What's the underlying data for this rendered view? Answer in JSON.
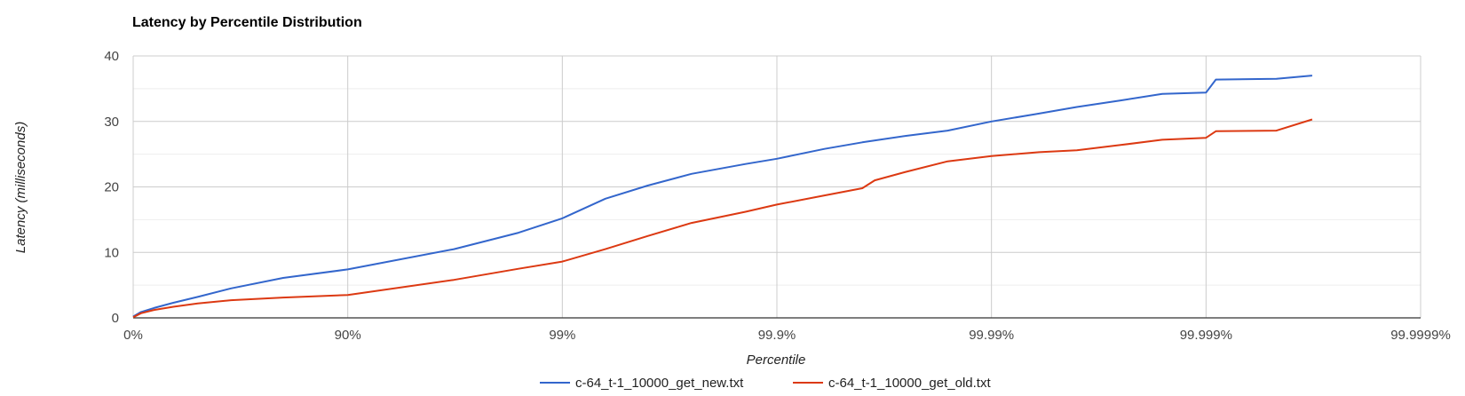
{
  "chart_data": {
    "type": "line",
    "title": "Latency by Percentile Distribution",
    "xlabel": "Percentile",
    "ylabel": "Latency (milliseconds)",
    "x_scale": "log-percentile",
    "x_ticks": [
      "0%",
      "90%",
      "99%",
      "99.9%",
      "99.99%",
      "99.999%",
      "99.9999%"
    ],
    "y_ticks": [
      0,
      10,
      20,
      30,
      40
    ],
    "ylim": [
      0,
      40
    ],
    "grid": true,
    "legend_position": "bottom",
    "series": [
      {
        "name": "c-64_t-1_10000_get_new.txt",
        "color": "#3366cc",
        "points": [
          {
            "percentile": 0,
            "latency": 0.2
          },
          {
            "percentile": 8,
            "latency": 0.9
          },
          {
            "percentile": 20,
            "latency": 1.5
          },
          {
            "percentile": 35,
            "latency": 2.3
          },
          {
            "percentile": 50,
            "latency": 3.2
          },
          {
            "percentile": 65,
            "latency": 4.5
          },
          {
            "percentile": 80,
            "latency": 6.1
          },
          {
            "percentile": 90,
            "latency": 7.4
          },
          {
            "percentile": 96.8,
            "latency": 10.5
          },
          {
            "percentile": 98.4,
            "latency": 13.0
          },
          {
            "percentile": 99.0,
            "latency": 15.2
          },
          {
            "percentile": 99.37,
            "latency": 18.2
          },
          {
            "percentile": 99.6,
            "latency": 20.2
          },
          {
            "percentile": 99.75,
            "latency": 22.0
          },
          {
            "percentile": 99.86,
            "latency": 23.5
          },
          {
            "percentile": 99.9,
            "latency": 24.3
          },
          {
            "percentile": 99.94,
            "latency": 25.8
          },
          {
            "percentile": 99.96,
            "latency": 26.8
          },
          {
            "percentile": 99.975,
            "latency": 27.8
          },
          {
            "percentile": 99.984,
            "latency": 28.6
          },
          {
            "percentile": 99.99,
            "latency": 30.0
          },
          {
            "percentile": 99.994,
            "latency": 31.2
          },
          {
            "percentile": 99.996,
            "latency": 32.2
          },
          {
            "percentile": 99.9975,
            "latency": 33.2
          },
          {
            "percentile": 99.9984,
            "latency": 34.2
          },
          {
            "percentile": 99.999,
            "latency": 34.4
          },
          {
            "percentile": 99.9991,
            "latency": 36.4
          },
          {
            "percentile": 99.99953,
            "latency": 36.5
          },
          {
            "percentile": 99.99968,
            "latency": 37.0
          }
        ]
      },
      {
        "name": "c-64_t-1_10000_get_old.txt",
        "color": "#dc3912",
        "points": [
          {
            "percentile": 0,
            "latency": 0.1
          },
          {
            "percentile": 8,
            "latency": 0.7
          },
          {
            "percentile": 20,
            "latency": 1.2
          },
          {
            "percentile": 35,
            "latency": 1.7
          },
          {
            "percentile": 50,
            "latency": 2.2
          },
          {
            "percentile": 65,
            "latency": 2.7
          },
          {
            "percentile": 80,
            "latency": 3.1
          },
          {
            "percentile": 90,
            "latency": 3.5
          },
          {
            "percentile": 96.8,
            "latency": 5.8
          },
          {
            "percentile": 98.4,
            "latency": 7.5
          },
          {
            "percentile": 99.0,
            "latency": 8.6
          },
          {
            "percentile": 99.37,
            "latency": 10.5
          },
          {
            "percentile": 99.6,
            "latency": 12.5
          },
          {
            "percentile": 99.75,
            "latency": 14.5
          },
          {
            "percentile": 99.86,
            "latency": 16.2
          },
          {
            "percentile": 99.9,
            "latency": 17.3
          },
          {
            "percentile": 99.94,
            "latency": 18.7
          },
          {
            "percentile": 99.96,
            "latency": 19.8
          },
          {
            "percentile": 99.965,
            "latency": 21.0
          },
          {
            "percentile": 99.975,
            "latency": 22.3
          },
          {
            "percentile": 99.984,
            "latency": 23.9
          },
          {
            "percentile": 99.99,
            "latency": 24.7
          },
          {
            "percentile": 99.994,
            "latency": 25.3
          },
          {
            "percentile": 99.996,
            "latency": 25.6
          },
          {
            "percentile": 99.9975,
            "latency": 26.4
          },
          {
            "percentile": 99.9984,
            "latency": 27.2
          },
          {
            "percentile": 99.999,
            "latency": 27.5
          },
          {
            "percentile": 99.9991,
            "latency": 28.5
          },
          {
            "percentile": 99.99953,
            "latency": 28.6
          },
          {
            "percentile": 99.99968,
            "latency": 30.3
          }
        ]
      }
    ]
  }
}
